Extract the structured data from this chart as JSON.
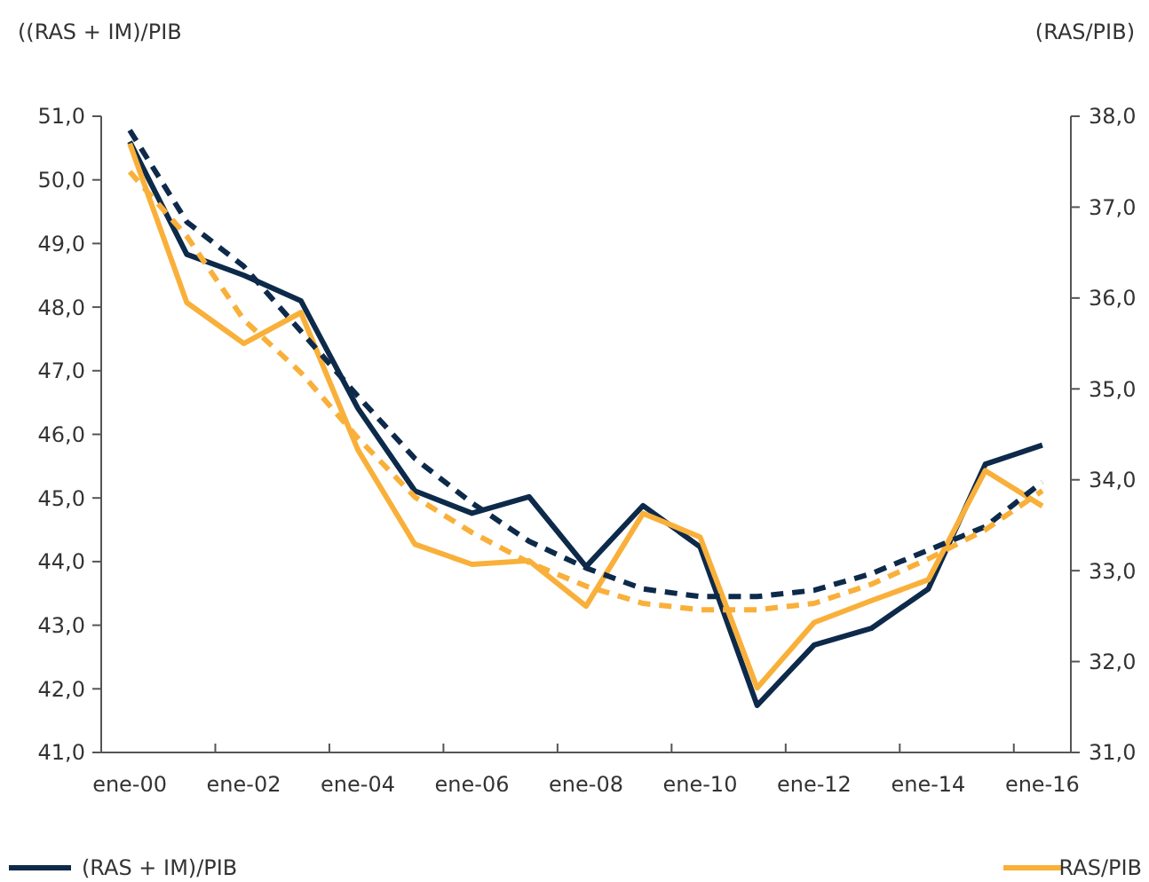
{
  "chart_data": {
    "type": "line",
    "ylabel": "((RAS + IM)/PIB",
    "y2label": "(RAS/PIB)",
    "categories": [
      "ene-00",
      null,
      "ene-02",
      null,
      "ene-04",
      null,
      "ene-06",
      null,
      "ene-08",
      null,
      "ene-10",
      null,
      "ene-12",
      null,
      "ene-14",
      null,
      "ene-16"
    ],
    "ylim": [
      41,
      51
    ],
    "yticks": [
      {
        "value": 41,
        "label": "41,0"
      },
      {
        "value": 42,
        "label": "42,0"
      },
      {
        "value": 43,
        "label": "43,0"
      },
      {
        "value": 44,
        "label": "44,0"
      },
      {
        "value": 45,
        "label": "45,0"
      },
      {
        "value": 46,
        "label": "46,0"
      },
      {
        "value": 47,
        "label": "47,0"
      },
      {
        "value": 48,
        "label": "48,0"
      },
      {
        "value": 49,
        "label": "49,0"
      },
      {
        "value": 50,
        "label": "50,0"
      },
      {
        "value": 51,
        "label": "51,0"
      }
    ],
    "y2lim": [
      31,
      38
    ],
    "y2ticks": [
      {
        "value": 31,
        "label": "31,0"
      },
      {
        "value": 32,
        "label": "32,0"
      },
      {
        "value": 33,
        "label": "33,0"
      },
      {
        "value": 34,
        "label": "34,0"
      },
      {
        "value": 35,
        "label": "35,0"
      },
      {
        "value": 36,
        "label": "36,0"
      },
      {
        "value": 37,
        "label": "37,0"
      },
      {
        "value": 38,
        "label": "38,0"
      }
    ],
    "series": [
      {
        "name": "(RAS + IM)/PIB",
        "color": "#0d2a4a",
        "line_style": "solid",
        "values": [
          50.6,
          48.83,
          48.5,
          48.1,
          46.41,
          45.11,
          44.76,
          45.02,
          43.92,
          44.88,
          44.23,
          41.74,
          42.69,
          42.95,
          43.57,
          45.53,
          45.83
        ]
      },
      {
        "name": "RAS/PIB",
        "color": "#f9b03a",
        "axis": "y2",
        "line_style": "solid",
        "values": [
          37.7,
          35.95,
          35.5,
          35.84,
          34.33,
          33.29,
          33.07,
          33.11,
          32.61,
          33.63,
          33.37,
          31.71,
          32.43,
          32.67,
          32.9,
          34.1,
          33.71
        ]
      },
      {
        "color": "#0d2a4a",
        "line_style": "dashed",
        "values": [
          50.78,
          49.34,
          48.64,
          47.62,
          46.6,
          45.62,
          44.92,
          44.32,
          43.9,
          43.57,
          43.45,
          43.45,
          43.55,
          43.81,
          44.18,
          44.55,
          45.25
        ]
      },
      {
        "color": "#f9b03a",
        "axis": "y2",
        "line_style": "dashed",
        "values": [
          37.39,
          36.68,
          35.76,
          35.18,
          34.46,
          33.81,
          33.42,
          33.09,
          32.83,
          32.64,
          32.57,
          32.57,
          32.64,
          32.85,
          33.13,
          33.45,
          33.88
        ]
      }
    ],
    "grid": false,
    "legend": "bottom"
  }
}
